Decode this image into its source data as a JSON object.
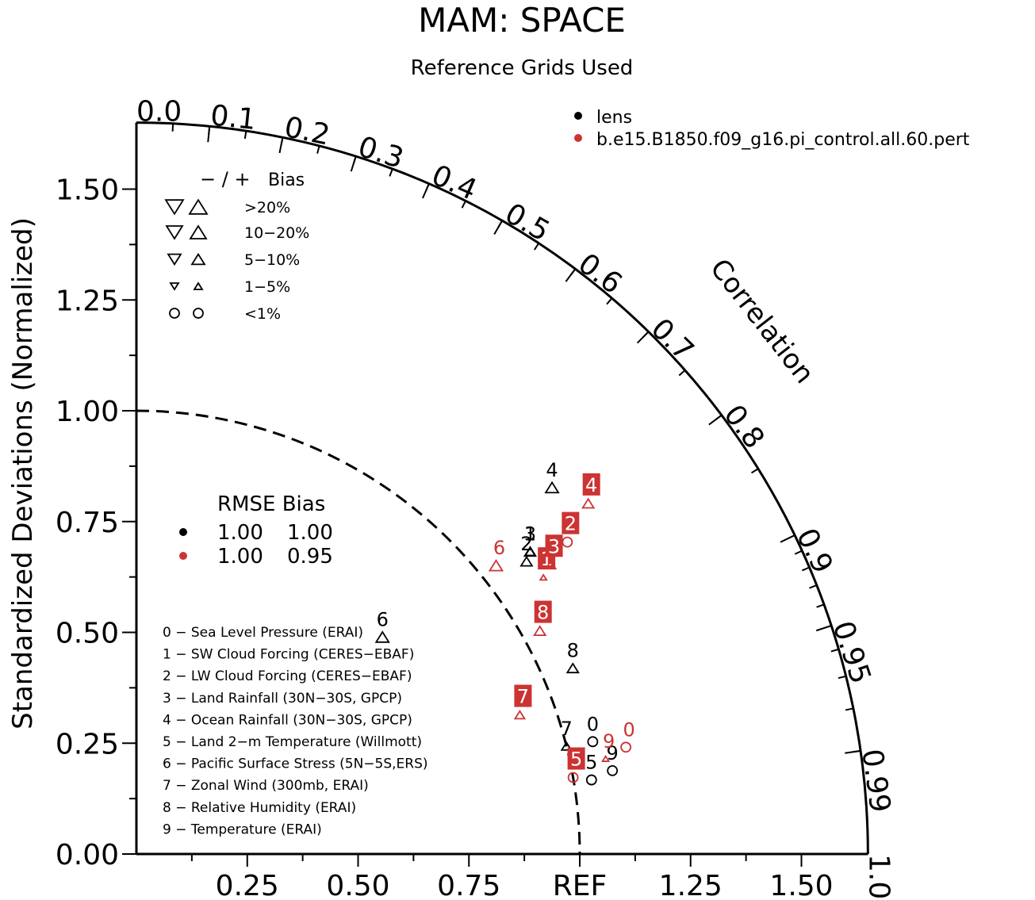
{
  "chart_data": {
    "type": "taylor",
    "title": "MAM: SPACE",
    "subtitle": "Reference Grids Used",
    "ylabel": "Standardized Deviations (Normalized)",
    "correlation_label": "Correlation",
    "ref_label": "REF",
    "std_range": [
      0,
      1.65
    ],
    "y_ticks": [
      "0.00",
      "0.25",
      "0.50",
      "0.75",
      "1.00",
      "1.25",
      "1.50"
    ],
    "x_ticks": [
      "0.25",
      "0.50",
      "0.75",
      "1.25",
      "1.50"
    ],
    "correlation_ticks": [
      "0.0",
      "0.1",
      "0.2",
      "0.3",
      "0.4",
      "0.5",
      "0.6",
      "0.7",
      "0.8",
      "0.9",
      "0.95",
      "0.99",
      "1.0"
    ],
    "legend": {
      "series": [
        {
          "name": "lens",
          "color": "#000000"
        },
        {
          "name": "b.e15.B1850.f09_g16.pi_control.all.60.pert",
          "color": "#cc3333"
        }
      ]
    },
    "bias_legend": {
      "header_sign": "− / +",
      "header": "Bias",
      "rows": [
        "&gt;20%",
        "10−20%",
        "5−10%",
        "1−5%",
        "&lt;1%"
      ]
    },
    "rmse_legend": {
      "header": "RMSE Bias",
      "rows": [
        {
          "color": "#000000",
          "rmse": "1.00",
          "bias": "1.00"
        },
        {
          "color": "#cc3333",
          "rmse": "1.00",
          "bias": "0.95"
        }
      ]
    },
    "variables": [
      "0 − Sea Level Pressure (ERAI)",
      "1 − SW Cloud Forcing (CERES−EBAF)",
      "2 − LW Cloud Forcing (CERES−EBAF)",
      "3 − Land Rainfall (30N−30S, GPCP)",
      "4 − Ocean Rainfall (30N−30S, GPCP)",
      "5 − Land 2−m Temperature (Willmott)",
      "6 − Pacific Surface Stress (5N−5S,ERS)",
      "7 − Zonal Wind (300mb, ERAI)",
      "8 − Relative Humidity (ERAI)",
      "9 − Temperature (ERAI)"
    ],
    "series": [
      {
        "name": "lens",
        "color": "#000000",
        "points": [
          {
            "id": "0",
            "correlation": 0.971,
            "std": 1.06,
            "bias_marker": "circle"
          },
          {
            "id": "1",
            "correlation": 0.793,
            "std": 1.12,
            "bias_marker": "up-5-10"
          },
          {
            "id": "2",
            "correlation": 0.8,
            "std": 1.1,
            "bias_marker": "up-10-20"
          },
          {
            "id": "3",
            "correlation": 0.793,
            "std": 1.12,
            "bias_marker": "up-10-20"
          },
          {
            "id": "4",
            "correlation": 0.75,
            "std": 1.25,
            "bias_marker": "up-gt20"
          },
          {
            "id": "5",
            "correlation": 0.987,
            "std": 1.04,
            "bias_marker": "circle"
          },
          {
            "id": "6",
            "correlation": 0.75,
            "std": 0.74,
            "bias_marker": "up-gt20"
          },
          {
            "id": "7",
            "correlation": 0.97,
            "std": 1.0,
            "bias_marker": "up-5-10"
          },
          {
            "id": "8",
            "correlation": 0.92,
            "std": 1.07,
            "bias_marker": "up-10-20"
          },
          {
            "id": "9",
            "correlation": 0.985,
            "std": 1.09,
            "bias_marker": "circle"
          }
        ]
      },
      {
        "name": "b.e15.B1850.f09_g16.pi_control.all.60.pert",
        "color": "#cc3333",
        "points": [
          {
            "id": "0",
            "correlation": 0.977,
            "std": 1.13,
            "bias_marker": "circle"
          },
          {
            "id": "1",
            "correlation": 0.827,
            "std": 1.11,
            "bias_marker": "up-1-5"
          },
          {
            "id": "2",
            "correlation": 0.81,
            "std": 1.2,
            "bias_marker": "circle"
          },
          {
            "id": "3",
            "correlation": 0.82,
            "std": 1.14,
            "bias_marker": "up-5-10"
          },
          {
            "id": "4",
            "correlation": 0.79,
            "std": 1.29,
            "bias_marker": "up-10-20"
          },
          {
            "id": "5",
            "correlation": 0.985,
            "std": 1.0,
            "bias_marker": "circle"
          },
          {
            "id": "6",
            "correlation": 0.78,
            "std": 1.04,
            "bias_marker": "up-gt20"
          },
          {
            "id": "7",
            "correlation": 0.94,
            "std": 0.92,
            "bias_marker": "up-5-10"
          },
          {
            "id": "8",
            "correlation": 0.875,
            "std": 1.04,
            "bias_marker": "up-10-20"
          },
          {
            "id": "9",
            "correlation": 0.98,
            "std": 1.08,
            "bias_marker": "up-1-5"
          }
        ]
      }
    ]
  }
}
